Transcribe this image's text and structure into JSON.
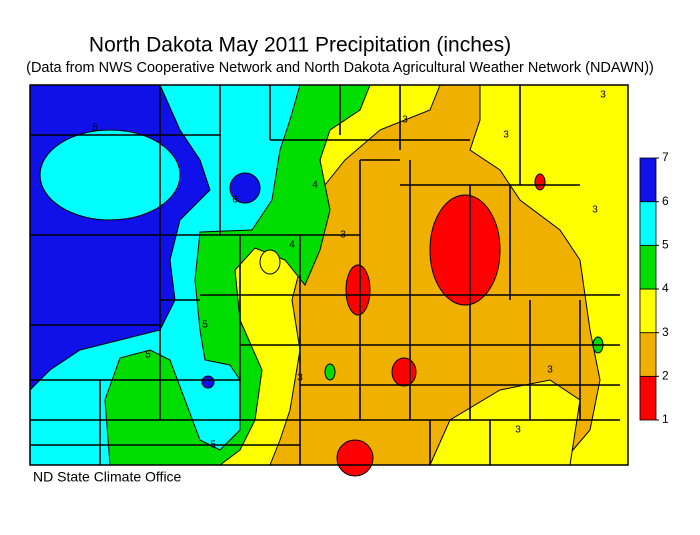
{
  "map": {
    "title": "North Dakota May 2011 Precipitation (inches)",
    "subtitle": "(Data from NWS Cooperative Network and North Dakota Agricultural Weather Network (NDAWN))",
    "credit": "ND State Climate Office",
    "legend": {
      "ticks": [
        1,
        2,
        3,
        4,
        5,
        6,
        7
      ],
      "colors": [
        "#ff0000",
        "#f0b000",
        "#ffff00",
        "#00dd00",
        "#00ffff",
        "#1010e8"
      ]
    },
    "contour_labels": [
      5,
      6,
      4,
      4,
      5,
      5,
      5,
      3,
      3,
      3,
      3,
      3,
      3,
      3,
      3
    ]
  }
}
